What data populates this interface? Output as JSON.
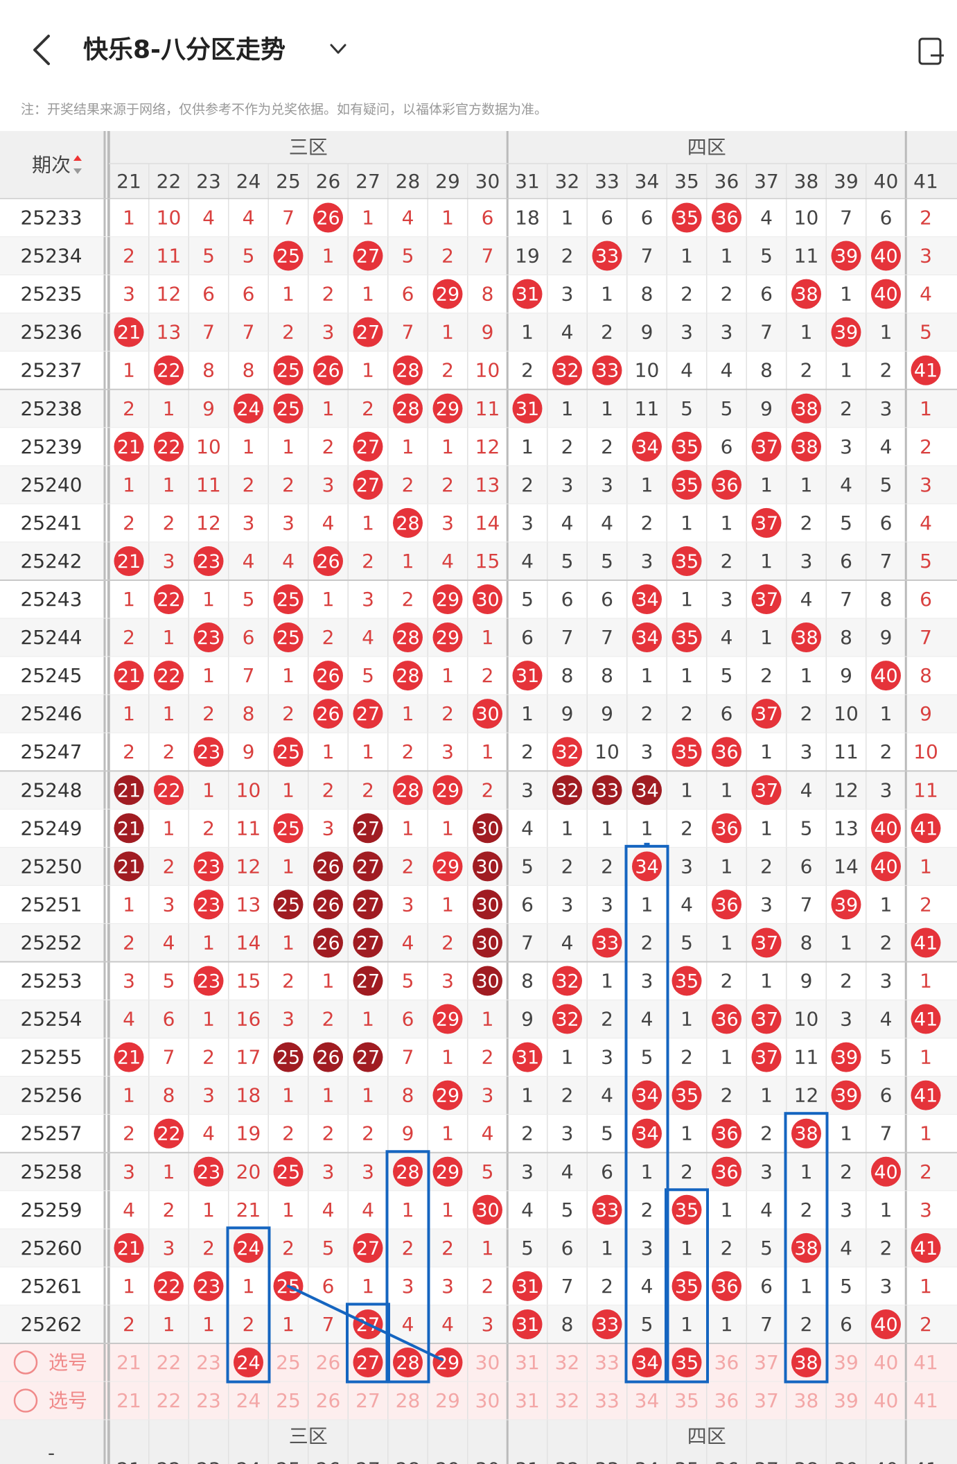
{
  "header": {
    "title": "快乐8-八分区走势"
  },
  "note": "注：开奖结果来源于网络，仅供参考不作为兑奖依据。如有疑问，以福体彩官方数据为准。",
  "table": {
    "period_label": "期次",
    "footer_period": "-",
    "zones": [
      "三区",
      "四区"
    ],
    "columns": [
      21,
      22,
      23,
      24,
      25,
      26,
      27,
      28,
      29,
      30,
      31,
      32,
      33,
      34,
      35,
      36,
      37,
      38,
      39,
      40,
      41
    ],
    "rows": [
      {
        "period": "25233",
        "cells": [
          1,
          10,
          4,
          4,
          7,
          26,
          1,
          4,
          1,
          6,
          18,
          1,
          6,
          6,
          35,
          36,
          4,
          10,
          7,
          6,
          2
        ]
      },
      {
        "period": "25234",
        "cells": [
          2,
          11,
          5,
          5,
          25,
          1,
          27,
          5,
          2,
          7,
          19,
          2,
          33,
          7,
          1,
          1,
          5,
          11,
          39,
          40,
          3
        ]
      },
      {
        "period": "25235",
        "cells": [
          3,
          12,
          6,
          6,
          1,
          2,
          1,
          6,
          29,
          8,
          31,
          3,
          1,
          8,
          2,
          2,
          6,
          38,
          1,
          40,
          4
        ]
      },
      {
        "period": "25236",
        "cells": [
          21,
          13,
          7,
          7,
          2,
          3,
          27,
          7,
          1,
          9,
          1,
          4,
          2,
          9,
          3,
          3,
          7,
          1,
          39,
          1,
          5
        ]
      },
      {
        "period": "25237",
        "cells": [
          1,
          22,
          8,
          8,
          25,
          26,
          1,
          28,
          2,
          10,
          2,
          32,
          33,
          10,
          4,
          4,
          8,
          2,
          1,
          2,
          41
        ]
      },
      {
        "period": "25238",
        "cells": [
          2,
          1,
          9,
          24,
          25,
          1,
          2,
          28,
          29,
          11,
          31,
          1,
          1,
          11,
          5,
          5,
          9,
          38,
          2,
          3,
          1
        ]
      },
      {
        "period": "25239",
        "cells": [
          21,
          22,
          10,
          1,
          1,
          2,
          27,
          1,
          1,
          12,
          1,
          2,
          2,
          34,
          35,
          6,
          37,
          38,
          3,
          4,
          2
        ]
      },
      {
        "period": "25240",
        "cells": [
          1,
          1,
          11,
          2,
          2,
          3,
          27,
          2,
          2,
          13,
          2,
          3,
          3,
          1,
          35,
          36,
          1,
          1,
          4,
          5,
          3
        ]
      },
      {
        "period": "25241",
        "cells": [
          2,
          2,
          12,
          3,
          3,
          4,
          1,
          28,
          3,
          14,
          3,
          4,
          4,
          2,
          1,
          1,
          37,
          2,
          5,
          6,
          4
        ]
      },
      {
        "period": "25242",
        "cells": [
          21,
          3,
          23,
          4,
          4,
          26,
          2,
          1,
          4,
          15,
          4,
          5,
          5,
          3,
          35,
          2,
          1,
          3,
          6,
          7,
          5
        ]
      },
      {
        "period": "25243",
        "cells": [
          1,
          22,
          1,
          5,
          25,
          1,
          3,
          2,
          29,
          30,
          5,
          6,
          6,
          34,
          1,
          3,
          37,
          4,
          7,
          8,
          6
        ]
      },
      {
        "period": "25244",
        "cells": [
          2,
          1,
          23,
          6,
          25,
          2,
          4,
          28,
          29,
          1,
          6,
          7,
          7,
          34,
          35,
          4,
          1,
          38,
          8,
          9,
          7
        ]
      },
      {
        "period": "25245",
        "cells": [
          21,
          22,
          1,
          7,
          1,
          26,
          5,
          28,
          1,
          2,
          31,
          8,
          8,
          1,
          1,
          5,
          2,
          1,
          9,
          40,
          8
        ]
      },
      {
        "period": "25246",
        "cells": [
          1,
          1,
          2,
          8,
          2,
          26,
          27,
          1,
          2,
          30,
          1,
          9,
          9,
          2,
          2,
          6,
          37,
          2,
          10,
          1,
          9
        ]
      },
      {
        "period": "25247",
        "cells": [
          2,
          2,
          23,
          9,
          25,
          1,
          1,
          2,
          3,
          1,
          2,
          32,
          10,
          3,
          35,
          36,
          1,
          3,
          11,
          2,
          10
        ]
      },
      {
        "period": "25248",
        "cells": [
          {
            "value": 21,
            "dark": true
          },
          22,
          1,
          10,
          1,
          2,
          2,
          28,
          29,
          2,
          3,
          {
            "value": 32,
            "dark": true
          },
          {
            "value": 33,
            "dark": true
          },
          {
            "value": 34,
            "dark": true
          },
          1,
          1,
          37,
          4,
          12,
          3,
          11
        ]
      },
      {
        "period": "25249",
        "cells": [
          {
            "value": 21,
            "dark": true
          },
          1,
          2,
          11,
          25,
          3,
          {
            "value": 27,
            "dark": true
          },
          1,
          1,
          {
            "value": 30,
            "dark": true
          },
          4,
          1,
          1,
          1,
          2,
          36,
          1,
          5,
          13,
          40,
          41
        ]
      },
      {
        "period": "25250",
        "cells": [
          {
            "value": 21,
            "dark": true
          },
          2,
          23,
          12,
          1,
          {
            "value": 26,
            "dark": true
          },
          {
            "value": 27,
            "dark": true
          },
          2,
          29,
          {
            "value": 30,
            "dark": true
          },
          5,
          2,
          2,
          34,
          3,
          1,
          2,
          6,
          14,
          40,
          1
        ]
      },
      {
        "period": "25251",
        "cells": [
          1,
          3,
          23,
          13,
          {
            "value": 25,
            "dark": true
          },
          {
            "value": 26,
            "dark": true
          },
          {
            "value": 27,
            "dark": true
          },
          3,
          1,
          {
            "value": 30,
            "dark": true
          },
          6,
          3,
          3,
          1,
          4,
          36,
          3,
          7,
          39,
          1,
          2
        ]
      },
      {
        "period": "25252",
        "cells": [
          2,
          4,
          1,
          14,
          1,
          {
            "value": 26,
            "dark": true
          },
          {
            "value": 27,
            "dark": true
          },
          4,
          2,
          {
            "value": 30,
            "dark": true
          },
          7,
          4,
          33,
          2,
          5,
          1,
          37,
          8,
          1,
          2,
          41
        ]
      },
      {
        "period": "25253",
        "cells": [
          3,
          5,
          23,
          15,
          2,
          1,
          {
            "value": 27,
            "dark": true
          },
          5,
          3,
          {
            "value": 30,
            "dark": true
          },
          8,
          32,
          1,
          3,
          35,
          2,
          1,
          9,
          2,
          3,
          1
        ]
      },
      {
        "period": "25254",
        "cells": [
          4,
          6,
          1,
          16,
          3,
          2,
          1,
          6,
          29,
          1,
          9,
          32,
          2,
          4,
          1,
          36,
          37,
          10,
          3,
          4,
          41
        ]
      },
      {
        "period": "25255",
        "cells": [
          21,
          7,
          2,
          17,
          {
            "value": 25,
            "dark": true
          },
          {
            "value": 26,
            "dark": true
          },
          {
            "value": 27,
            "dark": true
          },
          7,
          1,
          2,
          31,
          1,
          3,
          5,
          2,
          1,
          37,
          11,
          39,
          5,
          1
        ]
      },
      {
        "period": "25256",
        "cells": [
          1,
          8,
          3,
          18,
          1,
          1,
          1,
          8,
          29,
          3,
          1,
          2,
          4,
          34,
          35,
          2,
          1,
          12,
          39,
          6,
          41
        ]
      },
      {
        "period": "25257",
        "cells": [
          2,
          22,
          4,
          19,
          2,
          2,
          2,
          9,
          1,
          4,
          2,
          3,
          5,
          34,
          1,
          36,
          2,
          38,
          1,
          7,
          1
        ]
      },
      {
        "period": "25258",
        "cells": [
          3,
          1,
          23,
          20,
          25,
          3,
          3,
          28,
          29,
          5,
          3,
          4,
          6,
          1,
          2,
          36,
          3,
          1,
          2,
          40,
          2
        ]
      },
      {
        "period": "25259",
        "cells": [
          4,
          2,
          1,
          21,
          1,
          4,
          4,
          1,
          1,
          30,
          4,
          5,
          33,
          2,
          35,
          1,
          4,
          2,
          3,
          1,
          3
        ]
      },
      {
        "period": "25260",
        "cells": [
          21,
          3,
          2,
          24,
          2,
          5,
          27,
          2,
          2,
          1,
          5,
          6,
          1,
          3,
          1,
          2,
          5,
          38,
          4,
          2,
          41
        ]
      },
      {
        "period": "25261",
        "cells": [
          1,
          22,
          23,
          1,
          25,
          6,
          1,
          3,
          3,
          2,
          31,
          7,
          2,
          4,
          35,
          36,
          6,
          1,
          5,
          3,
          1
        ]
      },
      {
        "period": "25262",
        "cells": [
          2,
          1,
          1,
          2,
          1,
          7,
          27,
          4,
          4,
          3,
          31,
          8,
          33,
          5,
          1,
          1,
          7,
          2,
          6,
          40,
          2
        ]
      }
    ]
  },
  "select": {
    "rows": [
      {
        "label": "选号",
        "selected": [
          24,
          27,
          28,
          29,
          34,
          35,
          38
        ]
      },
      {
        "label": "选号"
      }
    ]
  }
}
